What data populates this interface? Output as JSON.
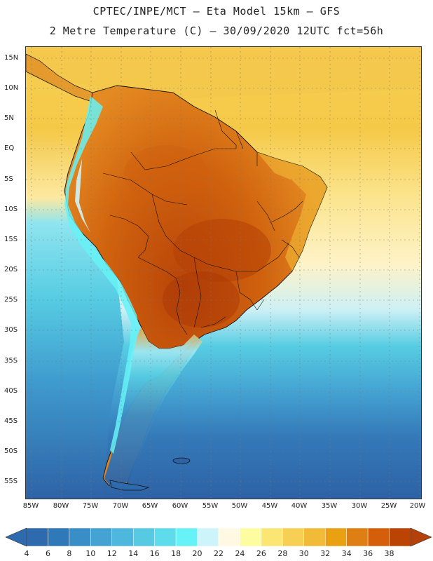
{
  "header": {
    "line1": "CPTEC/INPE/MCT –  Eta Model 15km – GFS",
    "line2": "2 Metre Temperature (C) – 30/09/2020 12UTC fct=56h"
  },
  "map": {
    "lat_labels": [
      "15N",
      "10N",
      "5N",
      "EQ",
      "5S",
      "10S",
      "15S",
      "20S",
      "25S",
      "30S",
      "35S",
      "40S",
      "45S",
      "50S",
      "55S"
    ],
    "lon_labels": [
      "85W",
      "80W",
      "75W",
      "70W",
      "65W",
      "60W",
      "55W",
      "50W",
      "45W",
      "40W",
      "35W",
      "30W",
      "25W",
      "20W"
    ]
  },
  "colorbar": {
    "labels": [
      "4",
      "6",
      "8",
      "10",
      "12",
      "14",
      "16",
      "18",
      "20",
      "22",
      "24",
      "26",
      "28",
      "30",
      "32",
      "34",
      "36",
      "38"
    ],
    "colors": [
      "#2d6aae",
      "#3079b9",
      "#3a8ec7",
      "#44a3d2",
      "#4db7dd",
      "#56cae2",
      "#5fdcec",
      "#66f2f7",
      "#cdf4fb",
      "#fff8e3",
      "#fefca0",
      "#fbe673",
      "#f7cf55",
      "#f1bb37",
      "#e9a111",
      "#df7f13",
      "#d45e0a",
      "#bb4405"
    ],
    "low_color": "#2d6aae",
    "high_color": "#b4400a"
  },
  "palette": {
    "ocean_deep": "#2e62a6",
    "ocean_mid": "#3d97cc",
    "ocean_light": "#57cde3",
    "ocean_warm": "#f7d04f",
    "ocean_pale": "#fef3c8",
    "land_hot": "#c85a10",
    "land_warm": "#e48a22",
    "andes_cold": "#66f2f7"
  }
}
